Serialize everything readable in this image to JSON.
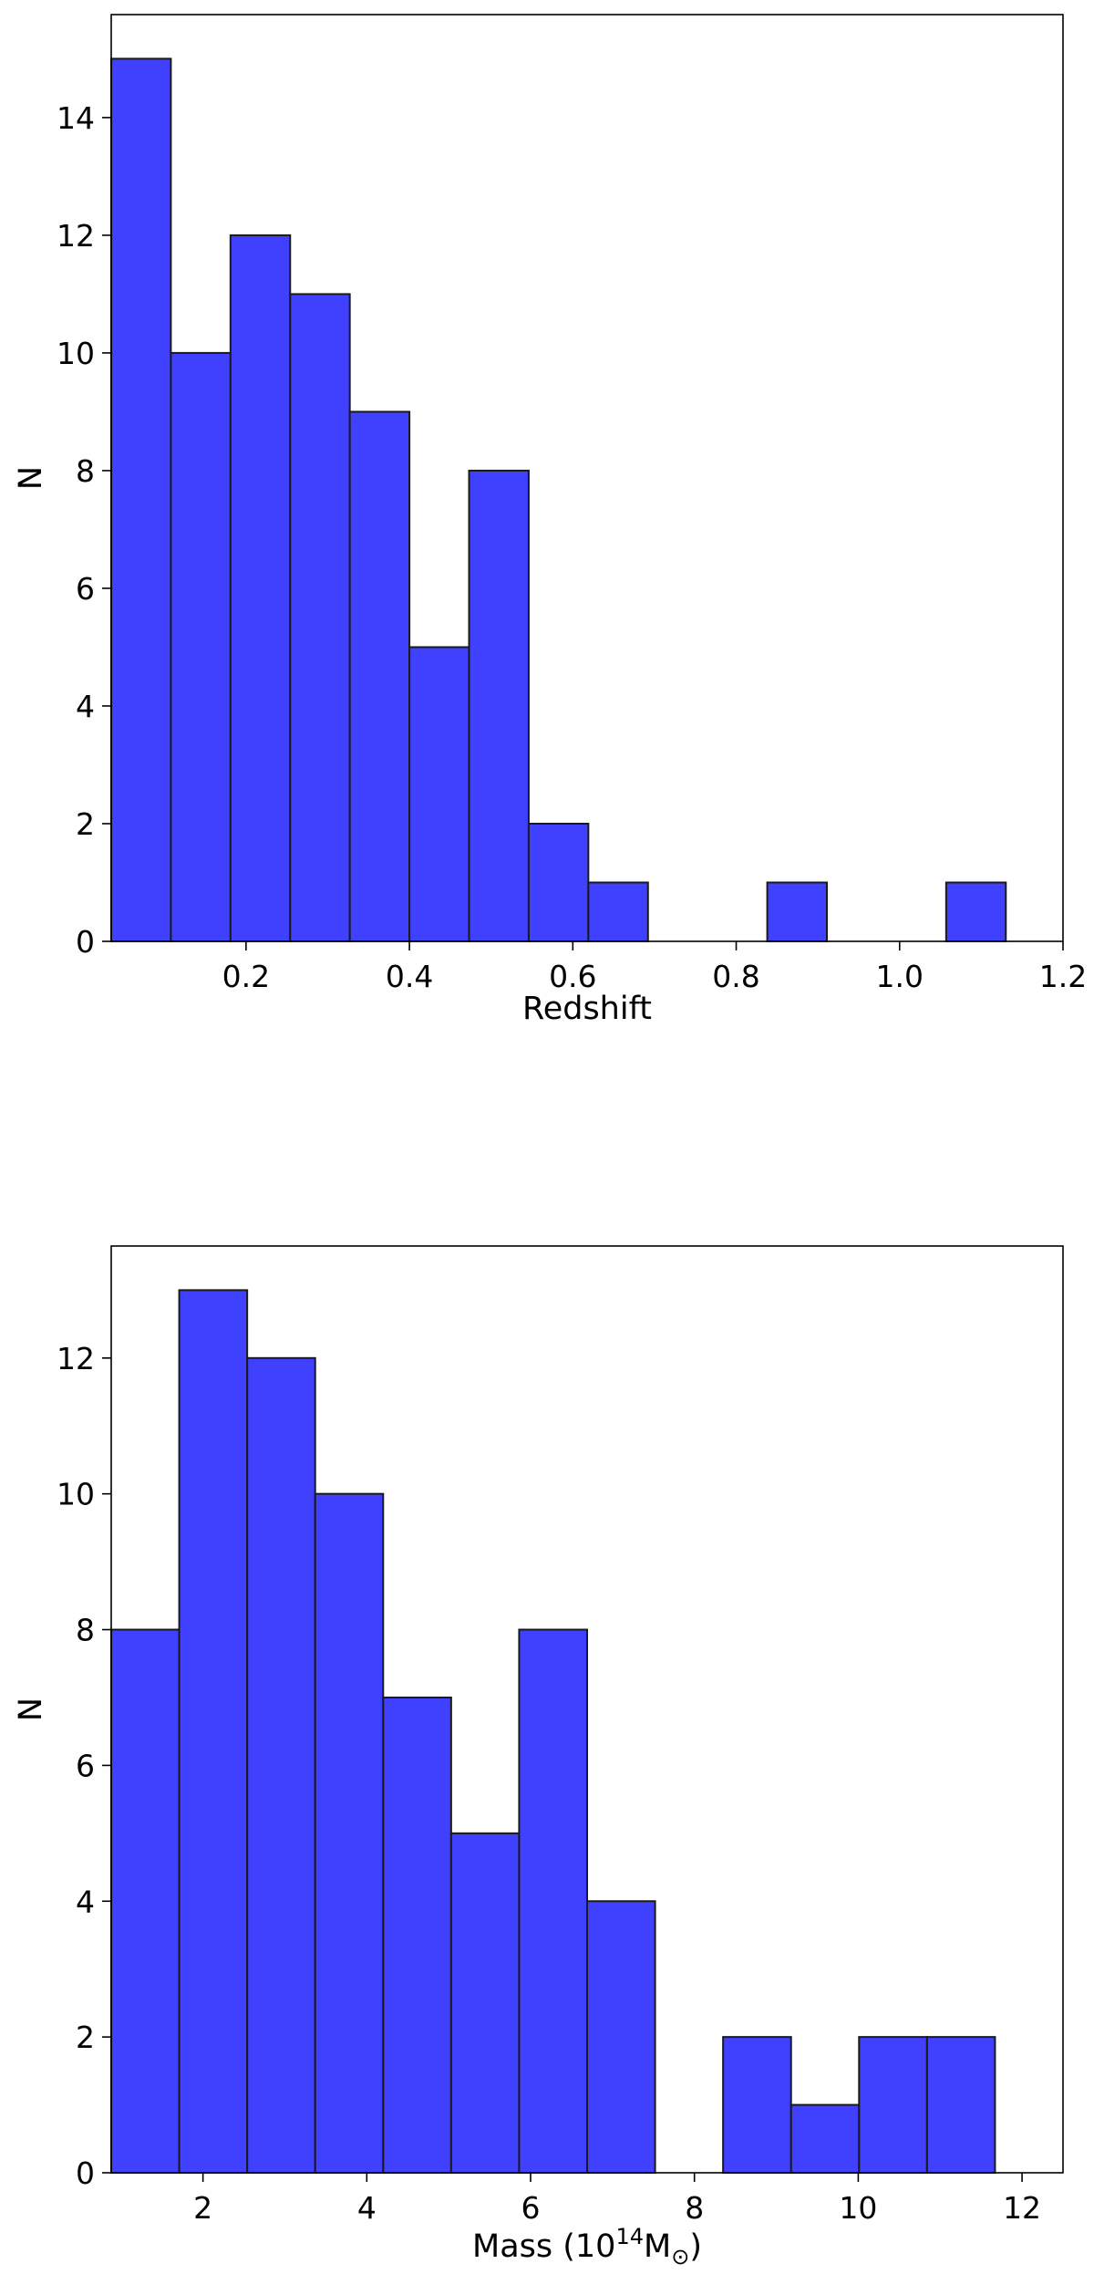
{
  "chart_data": [
    {
      "type": "bar",
      "title": "",
      "xlabel": "Redshift",
      "ylabel": "N",
      "xlim": [
        0.035,
        1.2
      ],
      "ylim": [
        0,
        15.75
      ],
      "bins": [
        {
          "x0": 0.035,
          "x1": 0.108,
          "count": 15
        },
        {
          "x0": 0.108,
          "x1": 0.181,
          "count": 10
        },
        {
          "x0": 0.181,
          "x1": 0.254,
          "count": 12
        },
        {
          "x0": 0.254,
          "x1": 0.327,
          "count": 11
        },
        {
          "x0": 0.327,
          "x1": 0.4,
          "count": 9
        },
        {
          "x0": 0.4,
          "x1": 0.473,
          "count": 5
        },
        {
          "x0": 0.473,
          "x1": 0.546,
          "count": 8
        },
        {
          "x0": 0.546,
          "x1": 0.619,
          "count": 2
        },
        {
          "x0": 0.619,
          "x1": 0.692,
          "count": 1
        },
        {
          "x0": 0.692,
          "x1": 0.765,
          "count": 0
        },
        {
          "x0": 0.765,
          "x1": 0.838,
          "count": 0
        },
        {
          "x0": 0.838,
          "x1": 0.911,
          "count": 1
        },
        {
          "x0": 0.911,
          "x1": 0.984,
          "count": 0
        },
        {
          "x0": 0.984,
          "x1": 1.057,
          "count": 0
        },
        {
          "x0": 1.057,
          "x1": 1.13,
          "count": 1
        }
      ],
      "xticks": [
        {
          "value": 0.2,
          "label": "0.2"
        },
        {
          "value": 0.4,
          "label": "0.4"
        },
        {
          "value": 0.6,
          "label": "0.6"
        },
        {
          "value": 0.8,
          "label": "0.8"
        },
        {
          "value": 1.0,
          "label": "1.0"
        },
        {
          "value": 1.2,
          "label": "1.2"
        }
      ],
      "yticks": [
        {
          "value": 0,
          "label": "0"
        },
        {
          "value": 2,
          "label": "2"
        },
        {
          "value": 4,
          "label": "4"
        },
        {
          "value": 6,
          "label": "6"
        },
        {
          "value": 8,
          "label": "8"
        },
        {
          "value": 10,
          "label": "10"
        },
        {
          "value": 12,
          "label": "12"
        },
        {
          "value": 14,
          "label": "14"
        }
      ]
    },
    {
      "type": "bar",
      "title": "",
      "xlabel": "Mass (10",
      "xlabel_sup": "14",
      "xlabel_sub_main": "M",
      "xlabel_sub": "⊙",
      "xlabel_end": ")",
      "ylabel": "N",
      "xlim": [
        0.88,
        12.5
      ],
      "ylim": [
        0,
        13.65
      ],
      "bins": [
        {
          "x0": 0.88,
          "x1": 1.71,
          "count": 8
        },
        {
          "x0": 1.71,
          "x1": 2.54,
          "count": 13
        },
        {
          "x0": 2.54,
          "x1": 3.37,
          "count": 12
        },
        {
          "x0": 3.37,
          "x1": 4.2,
          "count": 10
        },
        {
          "x0": 4.2,
          "x1": 5.03,
          "count": 7
        },
        {
          "x0": 5.03,
          "x1": 5.86,
          "count": 5
        },
        {
          "x0": 5.86,
          "x1": 6.69,
          "count": 8
        },
        {
          "x0": 6.69,
          "x1": 7.52,
          "count": 4
        },
        {
          "x0": 7.52,
          "x1": 8.35,
          "count": 0
        },
        {
          "x0": 8.35,
          "x1": 9.18,
          "count": 2
        },
        {
          "x0": 9.18,
          "x1": 10.01,
          "count": 1
        },
        {
          "x0": 10.01,
          "x1": 10.84,
          "count": 2
        },
        {
          "x0": 10.84,
          "x1": 11.67,
          "count": 2
        }
      ],
      "xticks": [
        {
          "value": 2,
          "label": "2"
        },
        {
          "value": 4,
          "label": "4"
        },
        {
          "value": 6,
          "label": "6"
        },
        {
          "value": 8,
          "label": "8"
        },
        {
          "value": 10,
          "label": "10"
        },
        {
          "value": 12,
          "label": "12"
        }
      ],
      "yticks": [
        {
          "value": 0,
          "label": "0"
        },
        {
          "value": 2,
          "label": "2"
        },
        {
          "value": 4,
          "label": "4"
        },
        {
          "value": 6,
          "label": "6"
        },
        {
          "value": 8,
          "label": "8"
        },
        {
          "value": 10,
          "label": "10"
        },
        {
          "value": 12,
          "label": "12"
        }
      ]
    }
  ]
}
